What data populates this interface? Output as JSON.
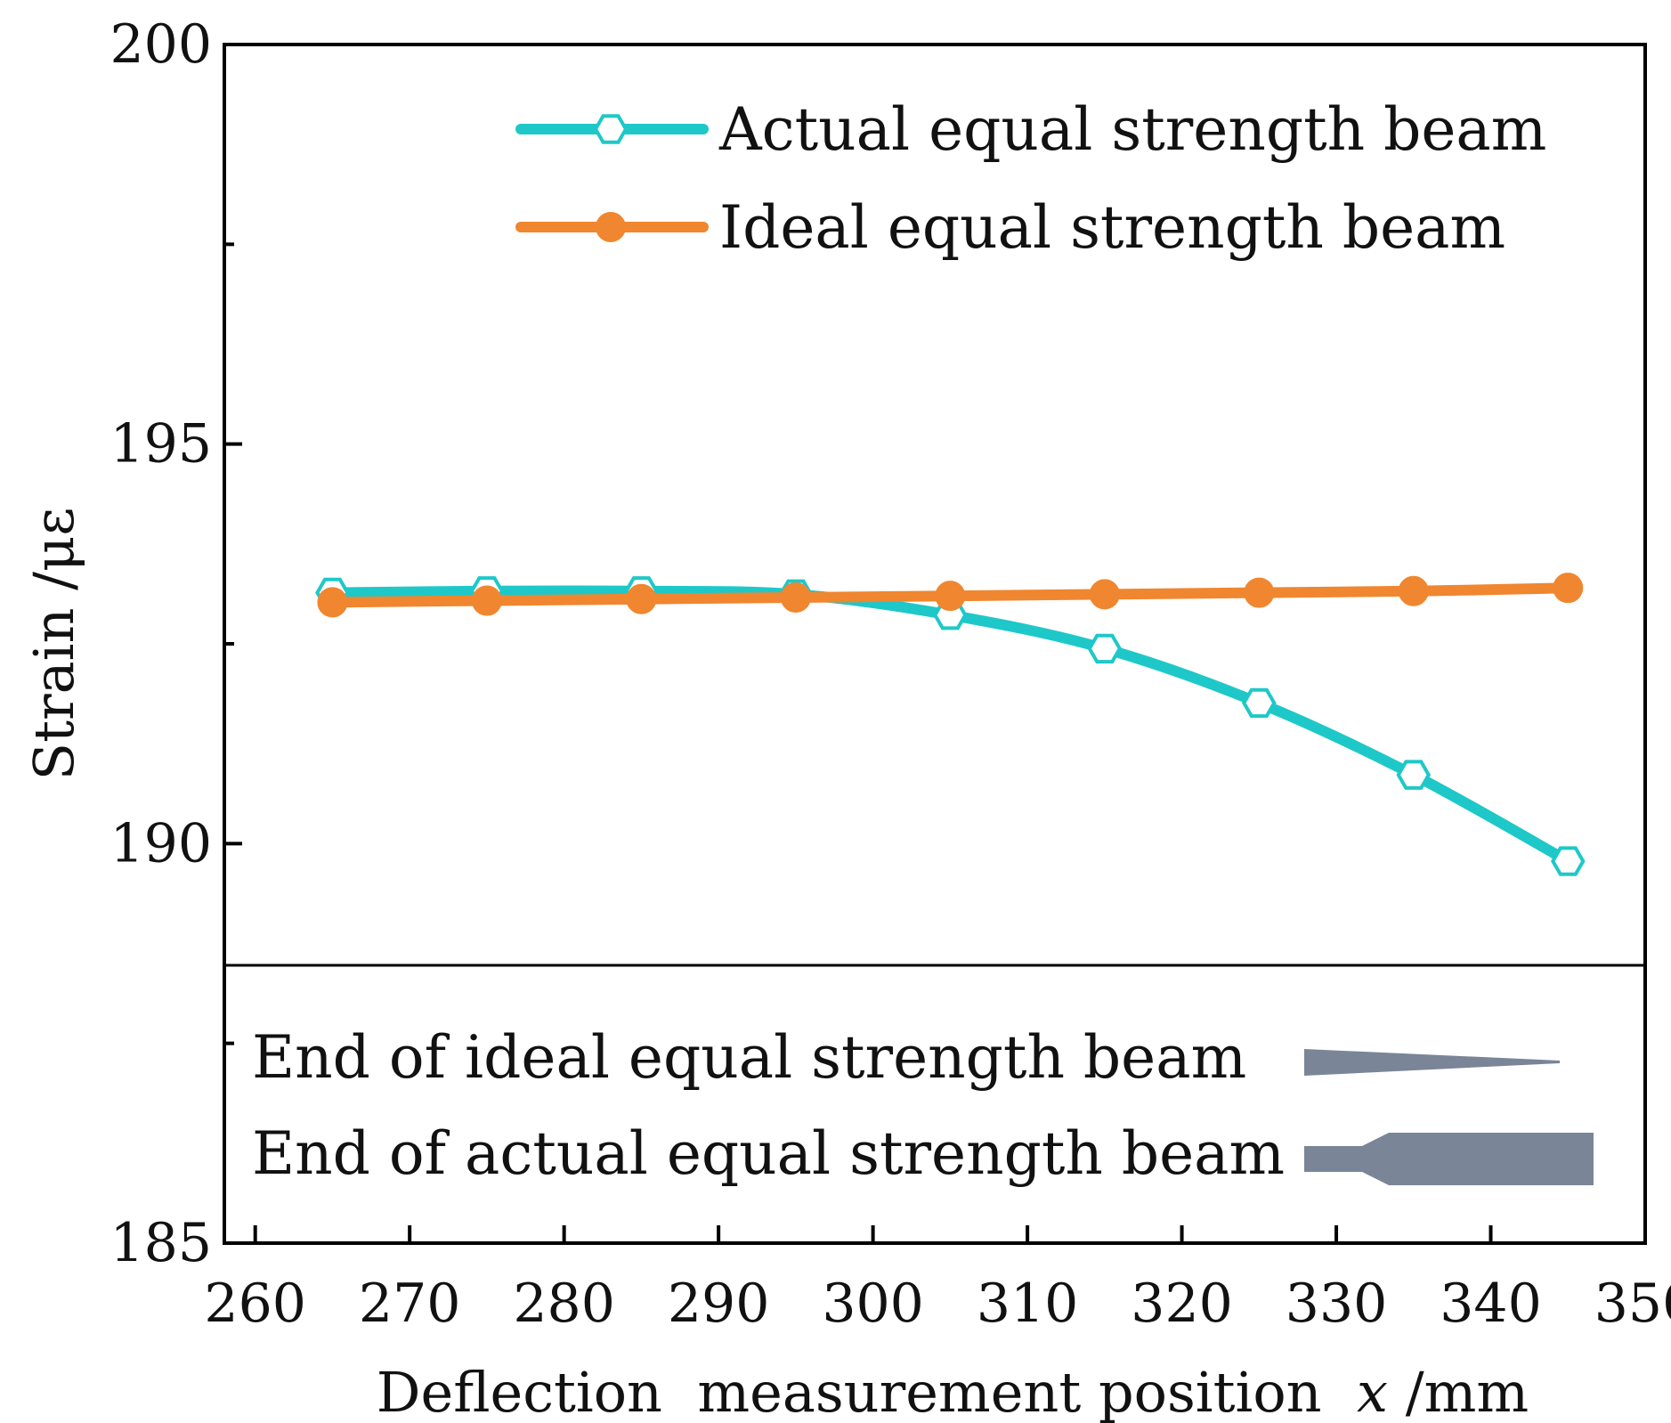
{
  "chart_data": {
    "type": "line",
    "xlabel": "Deflection  measurement position  x /mm",
    "xlabel_parts": {
      "main": "Deflection  measurement position  ",
      "var": "x",
      "unit": " /mm"
    },
    "ylabel": "Strain /με",
    "xlim": [
      258,
      350
    ],
    "ylim": [
      185,
      200
    ],
    "x_ticks": [
      260,
      270,
      280,
      290,
      300,
      310,
      320,
      330,
      340,
      350
    ],
    "y_ticks_labeled": [
      185,
      190,
      195,
      200
    ],
    "y_ticks_minor": [
      187.5,
      192.5,
      197.5
    ],
    "grid": false,
    "legend_position": "top-right",
    "x": [
      265,
      275,
      285,
      295,
      305,
      315,
      325,
      335,
      345
    ],
    "series": [
      {
        "name": "Actual equal strength beam",
        "color": "#1ec8c8",
        "marker": "open-hexagon",
        "values": [
          193.14,
          193.16,
          193.16,
          193.12,
          192.86,
          192.44,
          191.76,
          190.86,
          189.78
        ]
      },
      {
        "name": "Ideal equal strength beam",
        "color": "#f0862f",
        "marker": "filled-circle",
        "values": [
          193.02,
          193.04,
          193.06,
          193.08,
          193.1,
          193.12,
          193.14,
          193.16,
          193.2
        ]
      }
    ],
    "annotation_box": {
      "items": [
        {
          "label": "End of ideal equal strength beam",
          "shape": "tapered-wedge-icon",
          "color": "#7a8597"
        },
        {
          "label": "End of actual equal strength beam",
          "shape": "stepped-beam-icon",
          "color": "#7a8597"
        }
      ]
    }
  }
}
